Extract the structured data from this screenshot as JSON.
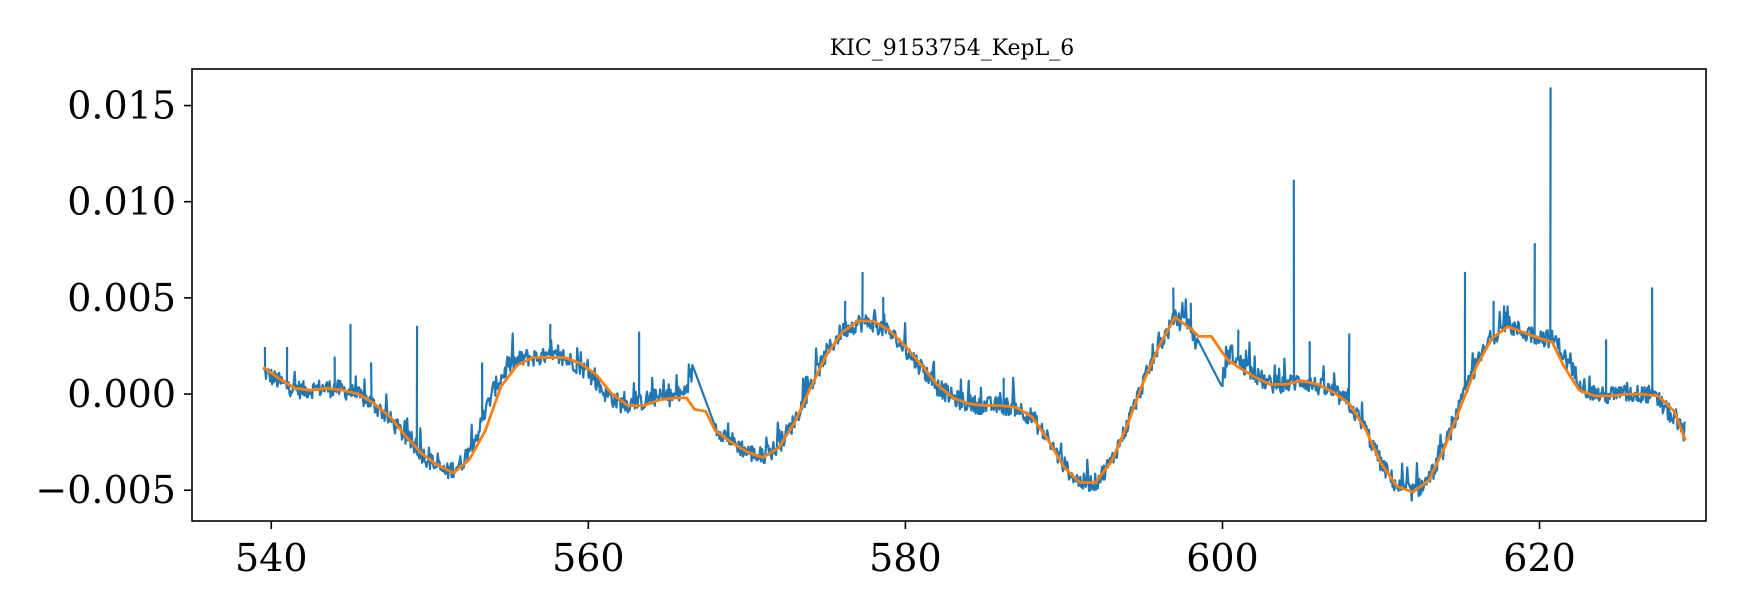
{
  "chart_data": {
    "type": "line",
    "title": "KIC_9153754_KepL_6",
    "xlabel": "",
    "ylabel": "",
    "xlim": [
      535,
      630.5
    ],
    "ylim": [
      -0.0066,
      0.0169
    ],
    "x_ticks": [
      540,
      560,
      580,
      600,
      620
    ],
    "x_tick_labels": [
      "540",
      "560",
      "580",
      "600",
      "620"
    ],
    "y_ticks": [
      -0.005,
      0.0,
      0.005,
      0.01,
      0.015
    ],
    "y_tick_labels": [
      "−0.005",
      "0.000",
      "0.005",
      "0.010",
      "0.015"
    ],
    "grid": false,
    "legend": "none",
    "series": [
      {
        "color": "#1f77b4",
        "x": [
          539.5,
          540.0,
          541,
          542,
          543,
          544,
          545,
          546,
          547,
          548,
          549,
          550,
          551,
          552,
          553,
          554,
          555,
          556,
          557,
          558,
          559,
          560,
          561,
          562,
          563,
          564,
          565,
          566,
          566.6,
          567.5,
          568.0,
          569,
          570,
          571,
          572,
          573,
          574,
          575,
          576,
          577,
          578,
          579,
          580,
          581,
          582,
          583,
          584,
          585,
          586,
          587,
          588,
          589,
          590,
          591,
          592,
          593,
          594,
          595,
          596,
          597,
          598,
          598.4,
          599.3,
          599.9,
          600.5,
          601,
          602,
          603,
          604,
          605,
          606,
          607,
          608,
          609,
          610,
          611,
          612,
          613,
          614,
          615,
          616,
          617,
          618,
          619,
          620,
          621,
          622,
          623,
          624,
          625,
          626,
          627,
          628,
          629.2
        ],
        "y": [
          0.0012,
          0.0009,
          0.0004,
          0.0002,
          0.0003,
          0.0003,
          0.0001,
          -0.0003,
          -0.0009,
          -0.0018,
          -0.0027,
          -0.0035,
          -0.0041,
          -0.0036,
          -0.0021,
          0.0002,
          0.0015,
          0.0019,
          0.0019,
          0.0019,
          0.0017,
          0.0011,
          0.0001,
          -0.0005,
          -0.0005,
          -0.0002,
          -0.0002,
          0.0,
          0.0012,
          0.0019,
          -0.0017,
          -0.0024,
          -0.003,
          -0.0033,
          -0.0027,
          -0.0014,
          0.0004,
          0.0021,
          0.0033,
          0.0037,
          0.0037,
          0.0032,
          0.0023,
          0.0014,
          0.0004,
          -0.0002,
          -0.0005,
          -0.0006,
          -0.0006,
          -0.0007,
          -0.0012,
          -0.0024,
          -0.0037,
          -0.0046,
          -0.0046,
          -0.0035,
          -0.0016,
          0.0006,
          0.0025,
          0.0039,
          0.0035,
          0.0025,
          0.0012,
          0.0005,
          0.0022,
          0.0017,
          0.001,
          0.0005,
          0.0005,
          0.0007,
          0.0004,
          0.0001,
          -0.0005,
          -0.0018,
          -0.0036,
          -0.0048,
          -0.0051,
          -0.0045,
          -0.0028,
          -0.0006,
          0.0015,
          0.003,
          0.0036,
          0.0032,
          0.003,
          0.0028,
          0.0013,
          0.0002,
          -0.0001,
          0.0,
          0.0,
          0.0,
          -0.0008,
          -0.0021
        ],
        "spikes": [
          {
            "x": 539.6,
            "y": 0.0024
          },
          {
            "x": 541.0,
            "y": 0.0024
          },
          {
            "x": 544.0,
            "y": 0.0019
          },
          {
            "x": 545.0,
            "y": 0.0036
          },
          {
            "x": 546.3,
            "y": 0.0016
          },
          {
            "x": 549.2,
            "y": 0.0035
          },
          {
            "x": 553.3,
            "y": 0.0016
          },
          {
            "x": 557.6,
            "y": 0.0036
          },
          {
            "x": 563.2,
            "y": 0.0032
          },
          {
            "x": 577.3,
            "y": 0.0063
          },
          {
            "x": 576.2,
            "y": 0.0048
          },
          {
            "x": 578.6,
            "y": 0.005
          },
          {
            "x": 586.2,
            "y": 0.0008
          },
          {
            "x": 596.9,
            "y": 0.0055
          },
          {
            "x": 598.0,
            "y": 0.0047
          },
          {
            "x": 601.0,
            "y": 0.0033
          },
          {
            "x": 604.5,
            "y": 0.0111
          },
          {
            "x": 605.5,
            "y": 0.0027
          },
          {
            "x": 608.0,
            "y": 0.0031
          },
          {
            "x": 615.3,
            "y": 0.0063
          },
          {
            "x": 617.1,
            "y": 0.0048
          },
          {
            "x": 619.7,
            "y": 0.0078
          },
          {
            "x": 620.7,
            "y": 0.0159
          },
          {
            "x": 624.2,
            "y": 0.0028
          },
          {
            "x": 627.1,
            "y": 0.0055
          }
        ]
      },
      {
        "color": "#ff7f0e",
        "x": [
          539.5,
          540.5,
          541.5,
          542.5,
          543.5,
          544.5,
          545.5,
          546.5,
          547.5,
          548.5,
          549.5,
          550.5,
          551.5,
          552.5,
          553.5,
          554.5,
          555.5,
          556.5,
          557.5,
          558.5,
          559.5,
          560.5,
          561.5,
          562.5,
          563.5,
          564.5,
          565.5,
          566.2,
          566.7,
          567.4,
          568.0,
          569,
          570,
          571,
          572,
          573,
          574,
          575,
          576,
          577,
          578,
          579,
          580,
          581,
          582,
          583,
          584,
          585,
          586,
          587,
          588,
          589,
          590,
          591,
          592,
          593,
          594,
          595,
          596,
          597,
          598,
          598.5,
          599.3,
          600.3,
          601,
          602,
          603,
          604,
          605,
          606,
          607,
          608,
          609,
          610,
          611,
          612,
          613,
          614,
          615,
          616,
          617,
          618,
          619,
          620,
          620.8,
          621.5,
          622.5,
          623.5,
          624.5,
          625.5,
          626.5,
          627.5,
          628.5,
          629.2
        ],
        "y": [
          0.0014,
          0.0008,
          0.0003,
          0.0002,
          0.0003,
          0.0002,
          0.0,
          -0.0005,
          -0.0012,
          -0.0022,
          -0.0031,
          -0.0037,
          -0.0041,
          -0.0034,
          -0.0019,
          0.0004,
          0.0015,
          0.0019,
          0.0019,
          0.0019,
          0.0016,
          0.001,
          0.0,
          -0.0006,
          -0.0006,
          -0.0003,
          -0.0002,
          -0.0002,
          -0.0008,
          -0.0009,
          -0.0019,
          -0.0025,
          -0.003,
          -0.0033,
          -0.0028,
          -0.0015,
          0.0003,
          0.002,
          0.0032,
          0.0038,
          0.0038,
          0.0033,
          0.0025,
          0.0015,
          0.0005,
          -0.0002,
          -0.0005,
          -0.0006,
          -0.0006,
          -0.0007,
          -0.0012,
          -0.0024,
          -0.0038,
          -0.0046,
          -0.0046,
          -0.0035,
          -0.0016,
          0.0006,
          0.0025,
          0.004,
          0.0034,
          0.003,
          0.003,
          0.0018,
          0.0014,
          0.0009,
          0.0005,
          0.0005,
          0.0007,
          0.0005,
          0.0001,
          -0.0005,
          -0.0018,
          -0.0036,
          -0.0048,
          -0.0051,
          -0.0045,
          -0.0028,
          -0.0007,
          0.0014,
          0.0029,
          0.0035,
          0.0032,
          0.0029,
          0.0027,
          0.0015,
          0.0002,
          -0.0001,
          -0.0001,
          0.0,
          0.0,
          -0.0001,
          -0.0009,
          -0.0024
        ]
      }
    ]
  }
}
